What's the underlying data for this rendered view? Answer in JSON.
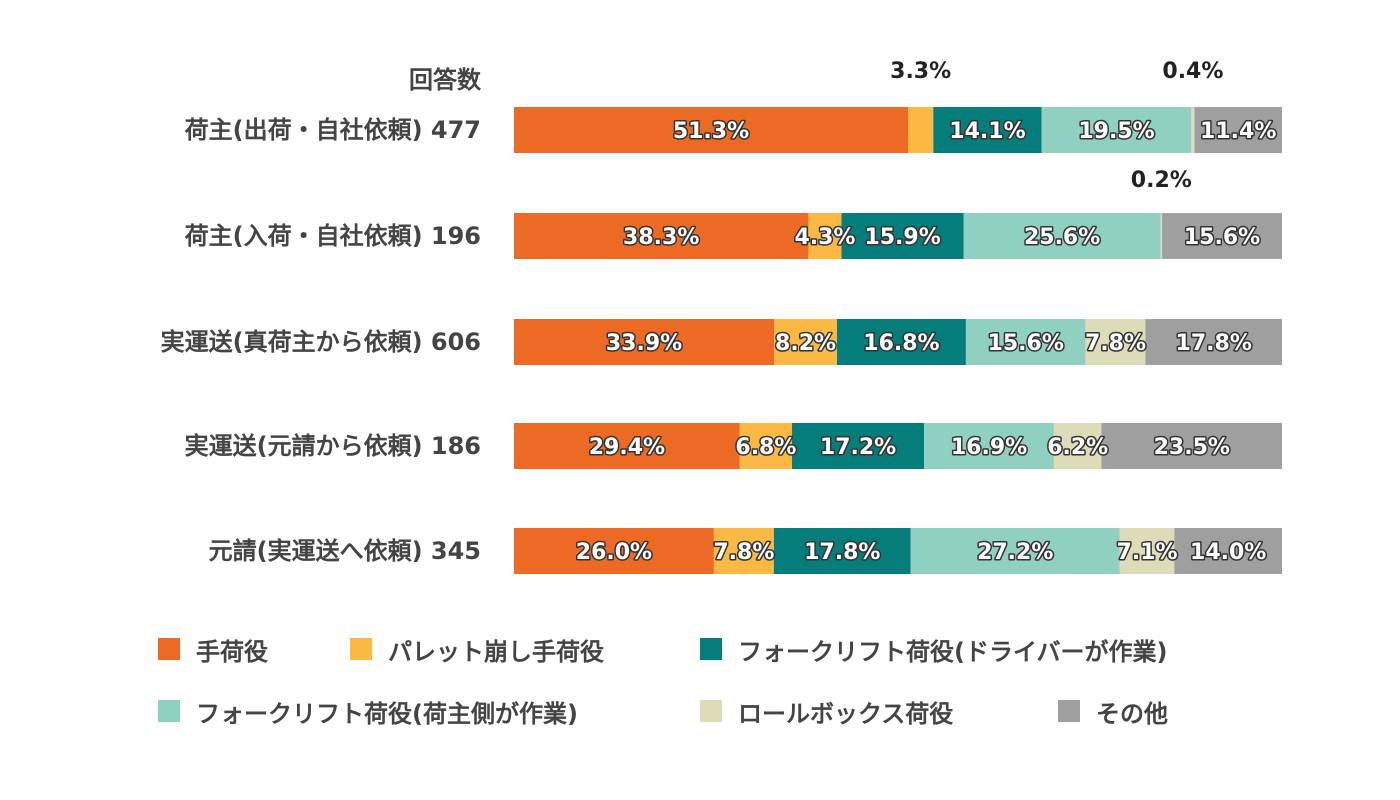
{
  "chart_data": {
    "type": "bar",
    "orientation": "horizontal",
    "stacked": true,
    "unit": "%",
    "header_label": "回答数",
    "categories": [
      "荷主(出荷・自社依頼) 477",
      "荷主(入荷・自社依頼) 196",
      "実運送(真荷主から依頼) 606",
      "実運送(元請から依頼) 186",
      "元請(実運送へ依頼) 345"
    ],
    "series": [
      {
        "name": "手荷役",
        "color": "#ec6a23",
        "values": [
          51.3,
          38.3,
          33.9,
          29.4,
          26.0
        ]
      },
      {
        "name": "パレット崩し手荷役",
        "color": "#fbb944",
        "values": [
          3.3,
          4.3,
          8.2,
          6.8,
          7.8
        ]
      },
      {
        "name": "フォークリフト荷役(ドライバーが作業)",
        "color": "#047d7b",
        "values": [
          14.1,
          15.9,
          16.8,
          17.2,
          17.8
        ]
      },
      {
        "name": "フォークリフト荷役(荷主側が作業)",
        "color": "#8fd0c1",
        "values": [
          19.5,
          25.6,
          15.6,
          16.9,
          27.2
        ]
      },
      {
        "name": "ロールボックス荷役",
        "color": "#dedbb8",
        "values": [
          0.4,
          0.2,
          7.8,
          6.2,
          7.1
        ]
      },
      {
        "name": "その他",
        "color": "#9f9f9f",
        "values": [
          11.4,
          15.6,
          17.8,
          23.5,
          14.0
        ]
      }
    ],
    "data_labels": [
      [
        "51.3%",
        "3.3%",
        "14.1%",
        "19.5%",
        "0.4%",
        "11.4%"
      ],
      [
        "38.3%",
        "4.3%",
        "15.9%",
        "25.6%",
        "0.2%",
        "15.6%"
      ],
      [
        "33.9%",
        "8.2%",
        "16.8%",
        "15.6%",
        "7.8%",
        "17.8%"
      ],
      [
        "29.4%",
        "6.8%",
        "17.2%",
        "16.9%",
        "6.2%",
        "23.5%"
      ],
      [
        "26.0%",
        "7.8%",
        "17.8%",
        "27.2%",
        "7.1%",
        "14.0%"
      ]
    ],
    "outside_labels": [
      [
        1,
        4
      ],
      [
        4
      ]
    ],
    "xlim": [
      0,
      100
    ],
    "grid": false,
    "legend_position": "bottom"
  }
}
